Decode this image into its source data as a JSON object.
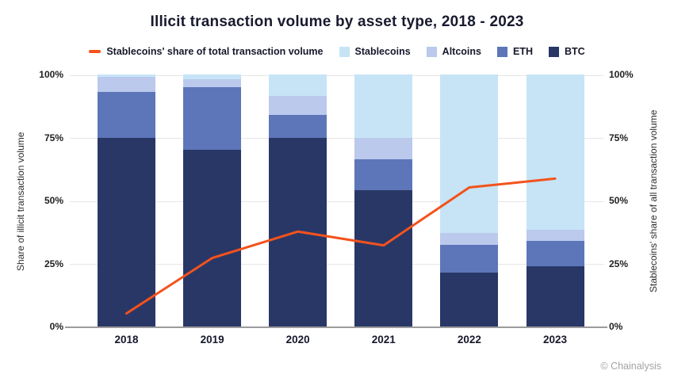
{
  "title": "Illicit transaction volume by asset type, 2018 - 2023",
  "credit": "© Chainalysis",
  "colors": {
    "background": "#ffffff",
    "title_text": "#181a2e",
    "tick_text": "#1f1f1f",
    "axis_title_text": "#2e2e2e",
    "gridline": "#e7e7e7",
    "axis_line": "#9b9b9b",
    "credit_text": "#a3a3a3",
    "line_accent": "#f4521c"
  },
  "chart_data": {
    "type": "bar",
    "subtype": "stacked-bar-with-line-overlay",
    "title": "Illicit transaction volume by asset type, 2018 - 2023",
    "categories": [
      "2018",
      "2019",
      "2020",
      "2021",
      "2022",
      "2023"
    ],
    "series": [
      {
        "name": "BTC",
        "color": "#293767",
        "values": [
          75,
          70,
          75,
          54,
          21.5,
          24
        ]
      },
      {
        "name": "ETH",
        "color": "#5d76b9",
        "values": [
          18,
          25,
          9,
          12.5,
          11,
          10
        ]
      },
      {
        "name": "Altcoins",
        "color": "#bac9ec",
        "values": [
          6,
          3,
          7.5,
          8.5,
          4.5,
          4.5
        ]
      },
      {
        "name": "Stablecoins",
        "color": "#c6e4f6",
        "values": [
          1,
          2,
          8.5,
          25,
          63,
          61.5
        ]
      }
    ],
    "line_series": {
      "name": "Stablecoins' share of total transaction volume",
      "color": "#f4521c",
      "values": [
        5.5,
        27.5,
        38,
        32.5,
        55.5,
        59
      ]
    },
    "left_axis": {
      "label": "Share of illicit transaction volume",
      "ticks": [
        "100%",
        "75%",
        "50%",
        "25%",
        "0%"
      ],
      "range": [
        0,
        100
      ]
    },
    "right_axis": {
      "label": "Stablecoins' share of all transaction volume",
      "ticks": [
        "100%",
        "75%",
        "50%",
        "25%",
        "0%"
      ],
      "range": [
        0,
        100
      ]
    },
    "grid": true,
    "legend_position": "top",
    "stack_order_bottom_to_top": [
      "BTC",
      "ETH",
      "Altcoins",
      "Stablecoins"
    ]
  }
}
